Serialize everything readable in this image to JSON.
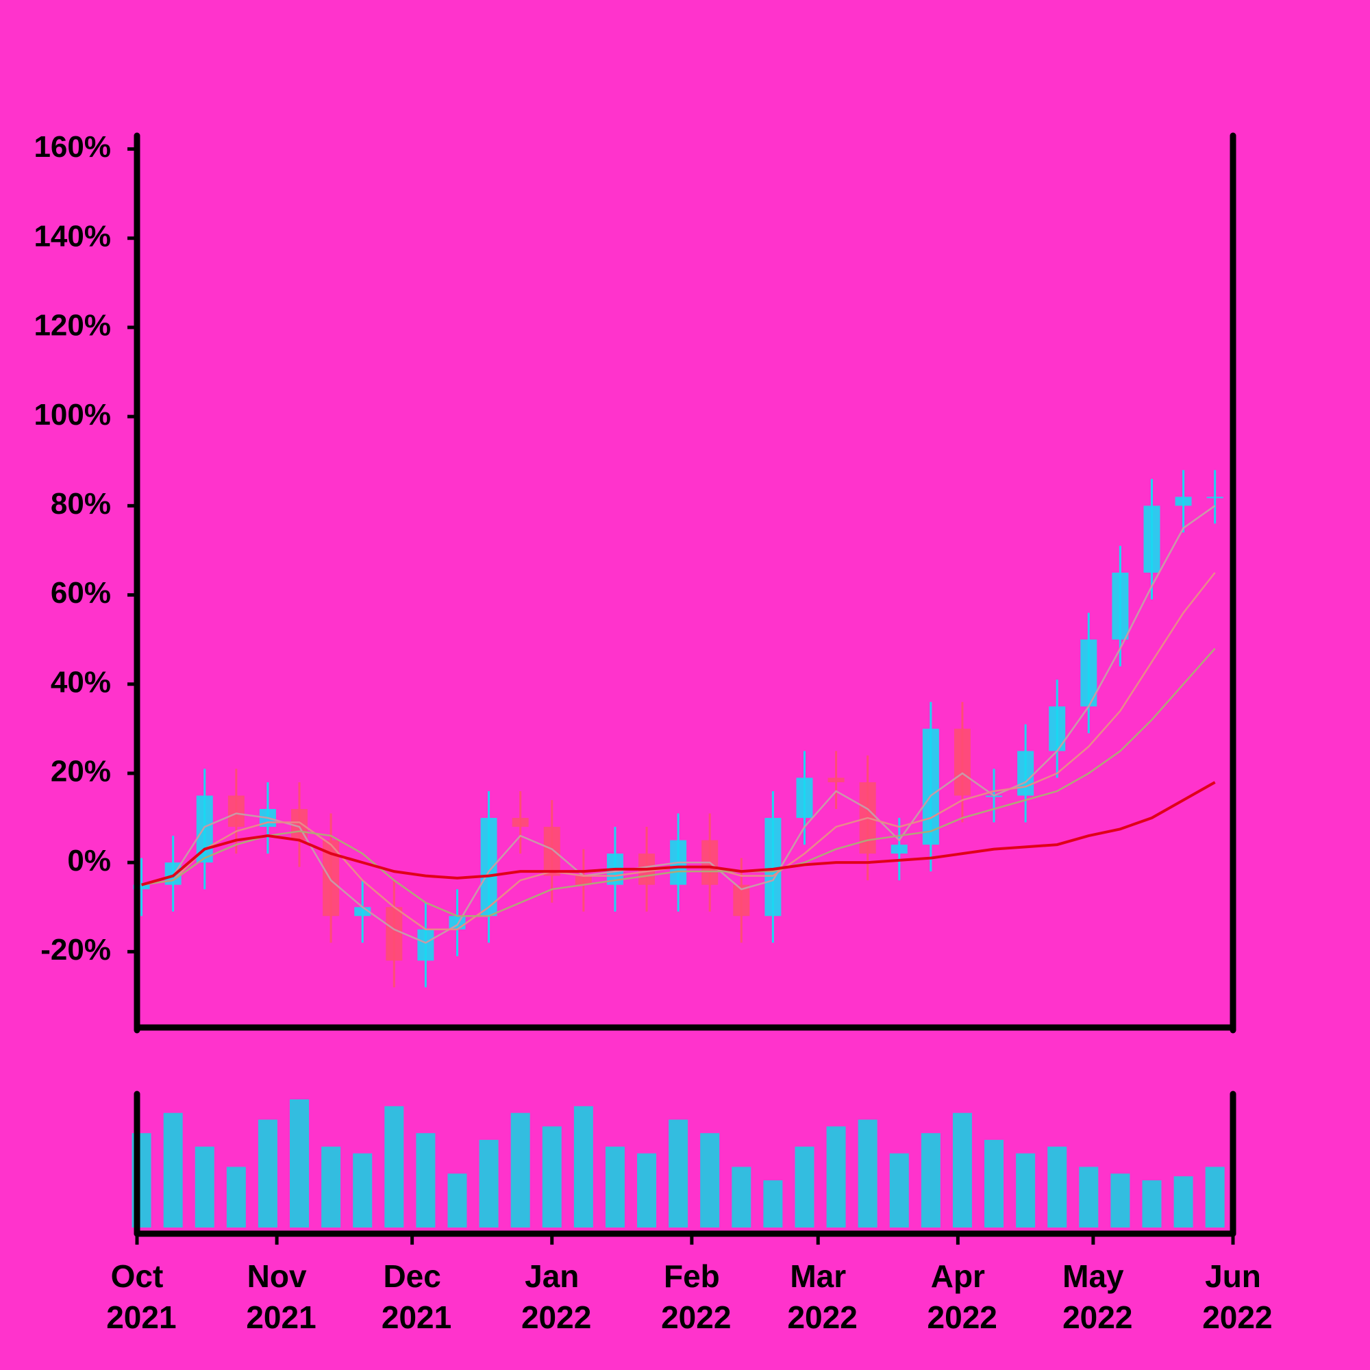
{
  "chart_data": [
    {
      "type": "candlestick",
      "x": [
        1,
        8,
        15,
        22,
        29,
        36,
        43,
        50,
        57,
        64,
        71,
        78,
        85,
        92,
        99,
        106,
        113,
        120,
        127,
        134,
        141,
        148,
        155,
        162,
        169,
        176,
        183,
        190,
        197,
        204,
        211,
        218,
        225,
        232,
        239
      ],
      "open": [
        -6,
        -5,
        0,
        15,
        8,
        12,
        5,
        -12,
        -10,
        -22,
        -15,
        -12,
        10,
        8,
        -3,
        -5,
        2,
        -5,
        5,
        -5,
        -12,
        10,
        19,
        18,
        2,
        4,
        30,
        15,
        15,
        25,
        35,
        50,
        65,
        80,
        82
      ],
      "high": [
        1,
        6,
        21,
        21,
        18,
        18,
        11,
        -4,
        -4,
        -9,
        -6,
        16,
        16,
        14,
        3,
        8,
        8,
        11,
        11,
        1,
        16,
        25,
        25,
        24,
        10,
        36,
        36,
        21,
        31,
        41,
        56,
        71,
        86,
        88,
        88
      ],
      "low": [
        -12,
        -11,
        -6,
        2,
        2,
        -1,
        -18,
        -18,
        -28,
        -28,
        -21,
        -18,
        2,
        -9,
        -11,
        -11,
        -11,
        -11,
        -11,
        -18,
        -18,
        4,
        12,
        -4,
        -4,
        -2,
        9,
        9,
        9,
        19,
        29,
        44,
        59,
        74,
        76
      ],
      "close": [
        -5,
        0,
        15,
        8,
        12,
        5,
        -12,
        -10,
        -22,
        -15,
        -12,
        10,
        8,
        -3,
        -5,
        2,
        -5,
        5,
        -5,
        -12,
        10,
        19,
        18,
        2,
        4,
        30,
        15,
        15,
        25,
        35,
        50,
        65,
        80,
        82,
        82
      ],
      "up_color": "#1ad8f2",
      "down_color": "#ff4d73",
      "lines": [
        {
          "color": "#c89aa8",
          "values": [
            -5,
            -3,
            8,
            11,
            10,
            8,
            -4,
            -10,
            -15,
            -18,
            -14,
            -2,
            6,
            3,
            -3,
            -2,
            -1,
            0,
            0,
            -6,
            -4,
            8,
            16,
            12,
            5,
            15,
            20,
            15,
            18,
            25,
            35,
            48,
            62,
            75,
            80
          ]
        },
        {
          "color": "#e88a8a",
          "values": [
            -5,
            -4,
            3,
            7,
            9,
            9,
            4,
            -4,
            -10,
            -15,
            -15,
            -10,
            -4,
            -2,
            -3,
            -3,
            -2,
            -1,
            -1,
            -3,
            -3,
            2,
            8,
            10,
            8,
            10,
            14,
            16,
            17,
            20,
            26,
            34,
            45,
            56,
            65
          ]
        },
        {
          "color": "#b0a878",
          "values": [
            -5,
            -4,
            1,
            4,
            6,
            7,
            6,
            2,
            -4,
            -9,
            -12,
            -12,
            -9,
            -6,
            -5,
            -4,
            -3,
            -2,
            -2,
            -2,
            -2,
            0,
            3,
            5,
            6,
            7,
            10,
            12,
            14,
            16,
            20,
            25,
            32,
            40,
            48
          ]
        },
        {
          "color": "#e0001a",
          "values": [
            -5,
            -3,
            3,
            5,
            6,
            5,
            2,
            0,
            -2,
            -3,
            -3.5,
            -3,
            -2,
            -2,
            -2,
            -1.5,
            -1.5,
            -1,
            -1,
            -2,
            -1.5,
            -0.5,
            0,
            0,
            0.5,
            1,
            2,
            3,
            3.5,
            4,
            6,
            7.5,
            10,
            14,
            18
          ]
        }
      ],
      "xlim": [
        0,
        243
      ],
      "ylim": [
        -37,
        163
      ],
      "yticks": [
        {
          "value": -20,
          "label": "-20%"
        },
        {
          "value": 0,
          "label": "0%"
        },
        {
          "value": 20,
          "label": "20%"
        },
        {
          "value": 40,
          "label": "40%"
        },
        {
          "value": 60,
          "label": "60%"
        },
        {
          "value": 80,
          "label": "80%"
        },
        {
          "value": 100,
          "label": "100%"
        },
        {
          "value": 120,
          "label": "120%"
        },
        {
          "value": 140,
          "label": "140%"
        },
        {
          "value": 160,
          "label": "160%"
        }
      ]
    },
    {
      "type": "bar",
      "x": [
        1,
        8,
        15,
        22,
        29,
        36,
        43,
        50,
        57,
        64,
        71,
        78,
        85,
        92,
        99,
        106,
        113,
        120,
        127,
        134,
        141,
        148,
        155,
        162,
        169,
        176,
        183,
        190,
        197,
        204,
        211,
        218,
        225,
        232,
        239
      ],
      "values": [
        70,
        85,
        60,
        45,
        80,
        95,
        60,
        55,
        90,
        70,
        40,
        65,
        85,
        75,
        90,
        60,
        55,
        80,
        70,
        45,
        35,
        60,
        75,
        80,
        55,
        70,
        85,
        65,
        55,
        60,
        45,
        40,
        35,
        38,
        45
      ],
      "color": "#33bde0",
      "xlim": [
        0,
        243
      ],
      "xticks": [
        {
          "value": 0,
          "label": "Oct 2021"
        },
        {
          "value": 31,
          "label": "Nov 2021"
        },
        {
          "value": 61,
          "label": "Dec 2021"
        },
        {
          "value": 92,
          "label": "Jan 2022"
        },
        {
          "value": 123,
          "label": "Feb 2022"
        },
        {
          "value": 151,
          "label": "Mar 2022"
        },
        {
          "value": 182,
          "label": "Apr 2022"
        },
        {
          "value": 212,
          "label": "May 2022"
        },
        {
          "value": 243,
          "label": "Jun 2022"
        }
      ]
    }
  ]
}
